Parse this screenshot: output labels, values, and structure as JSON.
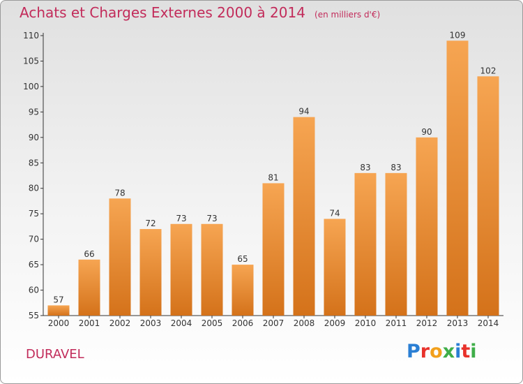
{
  "header": {
    "title": "Achats et Charges Externes 2000 à 2014",
    "subtitle": "(en milliers d'€)"
  },
  "footer": {
    "commune": "DURAVEL",
    "logo": "Proxiti",
    "logo_colors": [
      "#2a7fd4",
      "#e8322b",
      "#f2a01c",
      "#3fae49",
      "#2a7fd4",
      "#e8322b",
      "#3fae49"
    ]
  },
  "colors": {
    "bar_light": "#f6a552",
    "bar_dark": "#d4721a",
    "title": "#c22b5a",
    "axis": "#333333"
  },
  "chart_data": {
    "type": "bar",
    "categories": [
      "2000",
      "2001",
      "2002",
      "2003",
      "2004",
      "2005",
      "2006",
      "2007",
      "2008",
      "2009",
      "2010",
      "2011",
      "2012",
      "2013",
      "2014"
    ],
    "values": [
      57,
      66,
      78,
      72,
      73,
      73,
      65,
      81,
      94,
      74,
      83,
      83,
      90,
      109,
      102
    ],
    "ylim": [
      55,
      110
    ],
    "yticks": [
      55,
      60,
      65,
      70,
      75,
      80,
      85,
      90,
      95,
      100,
      105,
      110
    ],
    "grid": false,
    "legend": "none"
  }
}
